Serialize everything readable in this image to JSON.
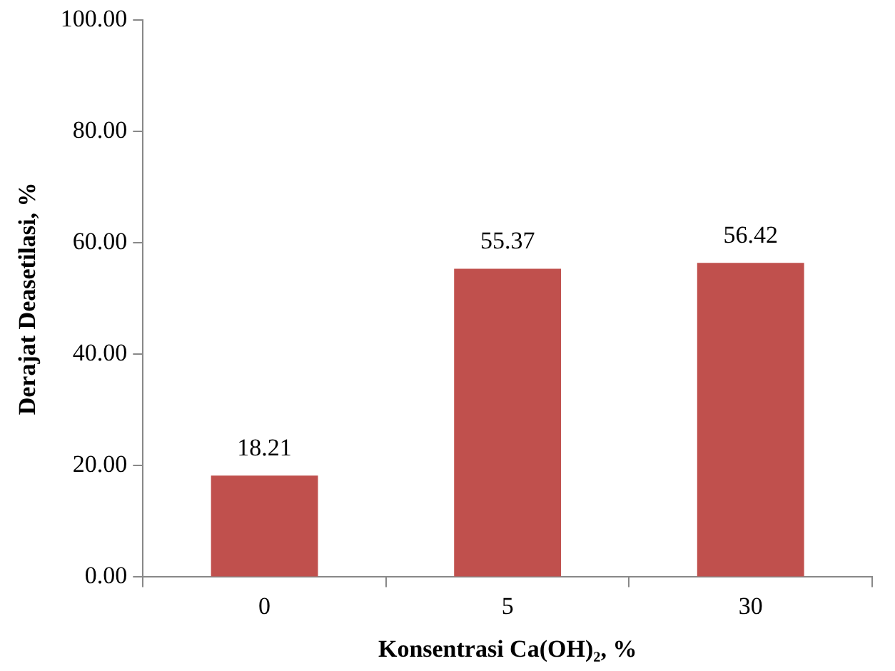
{
  "chart_data": {
    "type": "bar",
    "xlabel": "Konsentrasi Ca(OH)₂, %",
    "ylabel": "Derajat Deasetilasi, %",
    "categories": [
      "0",
      "5",
      "30"
    ],
    "values": [
      18.21,
      55.37,
      56.42
    ],
    "color": "#c0504d",
    "ylim": [
      0,
      100
    ],
    "yticks": [
      {
        "value": 0,
        "label": "0.00"
      },
      {
        "value": 20,
        "label": "20.00"
      },
      {
        "value": 40,
        "label": "40.00"
      },
      {
        "value": 60,
        "label": "60.00"
      },
      {
        "value": 80,
        "label": "80.00"
      },
      {
        "value": 100,
        "label": "100.00"
      }
    ],
    "grid": false,
    "legend": false,
    "data_labels": true
  }
}
